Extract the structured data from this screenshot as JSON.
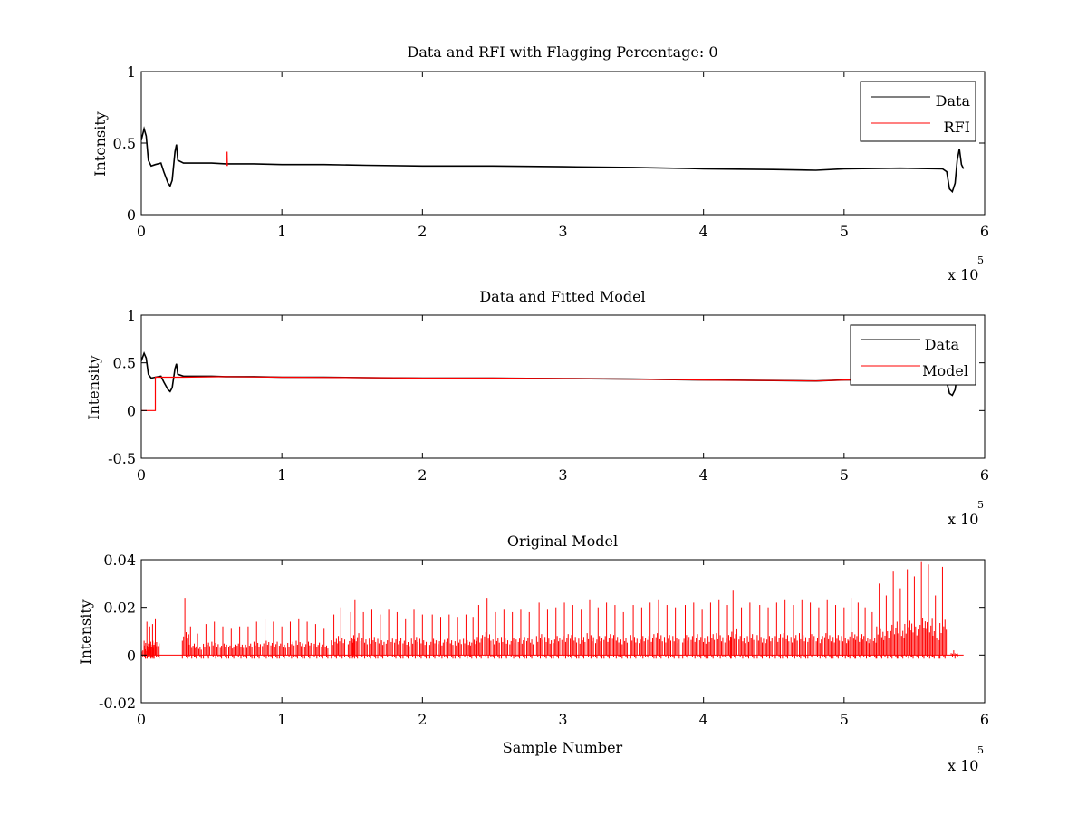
{
  "figure": {
    "background": "#ffffff",
    "axes_color": "#000000"
  },
  "chart_data": [
    {
      "type": "line",
      "title": "Data and RFI with Flagging Percentage: 0",
      "xlabel": "",
      "ylabel": "Intensity",
      "xlim": [
        0,
        600000
      ],
      "ylim": [
        0,
        1
      ],
      "xticks": [
        0,
        100000,
        200000,
        300000,
        400000,
        500000,
        600000
      ],
      "xtick_labels": [
        "0",
        "1",
        "2",
        "3",
        "4",
        "5",
        "6"
      ],
      "yticks": [
        0,
        0.5,
        1
      ],
      "ytick_labels": [
        "0",
        "0.5",
        "1"
      ],
      "x_multiplier": {
        "base": "x 10",
        "exponent": "5"
      },
      "legend": {
        "placement": "top-right",
        "entries": [
          "Data",
          "RFI"
        ]
      },
      "series": [
        {
          "name": "Data",
          "color": "#000000",
          "points": [
            [
              0,
              0.52
            ],
            [
              2000,
              0.6
            ],
            [
              3500,
              0.55
            ],
            [
              5000,
              0.38
            ],
            [
              7000,
              0.34
            ],
            [
              10000,
              0.35
            ],
            [
              14000,
              0.36
            ],
            [
              16000,
              0.3
            ],
            [
              19000,
              0.22
            ],
            [
              20500,
              0.2
            ],
            [
              22000,
              0.24
            ],
            [
              24000,
              0.44
            ],
            [
              25000,
              0.49
            ],
            [
              26000,
              0.38
            ],
            [
              30000,
              0.36
            ],
            [
              50000,
              0.36
            ],
            [
              60000,
              0.355
            ],
            [
              80000,
              0.355
            ],
            [
              100000,
              0.35
            ],
            [
              130000,
              0.35
            ],
            [
              160000,
              0.345
            ],
            [
              200000,
              0.34
            ],
            [
              250000,
              0.34
            ],
            [
              300000,
              0.335
            ],
            [
              350000,
              0.33
            ],
            [
              400000,
              0.32
            ],
            [
              450000,
              0.315
            ],
            [
              480000,
              0.31
            ],
            [
              500000,
              0.32
            ],
            [
              540000,
              0.325
            ],
            [
              570000,
              0.32
            ],
            [
              573000,
              0.3
            ],
            [
              575000,
              0.18
            ],
            [
              577000,
              0.16
            ],
            [
              579000,
              0.22
            ],
            [
              580500,
              0.38
            ],
            [
              582000,
              0.46
            ],
            [
              583500,
              0.35
            ],
            [
              585000,
              0.32
            ]
          ]
        },
        {
          "name": "RFI",
          "color": "#ff0000",
          "points": [
            [
              61000,
              0.34
            ],
            [
              61000,
              0.44
            ],
            [
              61200,
              0.34
            ]
          ]
        }
      ]
    },
    {
      "type": "line",
      "title": "Data and Fitted Model",
      "xlabel": "",
      "ylabel": "Intensity",
      "xlim": [
        0,
        600000
      ],
      "ylim": [
        -0.5,
        1
      ],
      "xticks": [
        0,
        100000,
        200000,
        300000,
        400000,
        500000,
        600000
      ],
      "xtick_labels": [
        "0",
        "1",
        "2",
        "3",
        "4",
        "5",
        "6"
      ],
      "yticks": [
        -0.5,
        0,
        0.5,
        1
      ],
      "ytick_labels": [
        "-0.5",
        "0",
        "0.5",
        "1"
      ],
      "x_multiplier": {
        "base": "x 10",
        "exponent": "5"
      },
      "legend": {
        "placement": "top-right",
        "entries": [
          "Data",
          "Model"
        ]
      },
      "series": [
        {
          "name": "Data",
          "color": "#000000",
          "points": [
            [
              0,
              0.52
            ],
            [
              2000,
              0.6
            ],
            [
              3500,
              0.55
            ],
            [
              5000,
              0.38
            ],
            [
              7000,
              0.34
            ],
            [
              10000,
              0.35
            ],
            [
              14000,
              0.36
            ],
            [
              16000,
              0.3
            ],
            [
              19000,
              0.22
            ],
            [
              20500,
              0.2
            ],
            [
              22000,
              0.24
            ],
            [
              24000,
              0.44
            ],
            [
              25000,
              0.49
            ],
            [
              26000,
              0.38
            ],
            [
              30000,
              0.36
            ],
            [
              50000,
              0.36
            ],
            [
              60000,
              0.355
            ],
            [
              80000,
              0.355
            ],
            [
              100000,
              0.35
            ],
            [
              130000,
              0.35
            ],
            [
              160000,
              0.345
            ],
            [
              200000,
              0.34
            ],
            [
              250000,
              0.34
            ],
            [
              300000,
              0.335
            ],
            [
              350000,
              0.33
            ],
            [
              400000,
              0.32
            ],
            [
              450000,
              0.315
            ],
            [
              480000,
              0.31
            ],
            [
              500000,
              0.32
            ],
            [
              540000,
              0.325
            ],
            [
              570000,
              0.32
            ],
            [
              573000,
              0.3
            ],
            [
              575000,
              0.18
            ],
            [
              577000,
              0.16
            ],
            [
              579000,
              0.22
            ],
            [
              580500,
              0.38
            ],
            [
              582000,
              0.46
            ],
            [
              583500,
              0.35
            ],
            [
              585000,
              0.32
            ]
          ]
        },
        {
          "name": "Model",
          "color": "#ff0000",
          "points": [
            [
              0,
              0
            ],
            [
              10000,
              0
            ],
            [
              10000,
              0.35
            ],
            [
              30000,
              0.35
            ],
            [
              60000,
              0.355
            ],
            [
              100000,
              0.35
            ],
            [
              160000,
              0.345
            ],
            [
              200000,
              0.34
            ],
            [
              250000,
              0.34
            ],
            [
              300000,
              0.335
            ],
            [
              350000,
              0.33
            ],
            [
              400000,
              0.32
            ],
            [
              450000,
              0.315
            ],
            [
              480000,
              0.31
            ],
            [
              500000,
              0.32
            ],
            [
              540000,
              0.325
            ],
            [
              570000,
              0.32
            ],
            [
              585000,
              0.32
            ]
          ]
        }
      ]
    },
    {
      "type": "line",
      "title": "Original Model",
      "xlabel": "Sample Number",
      "ylabel": "Intensity",
      "xlim": [
        0,
        600000
      ],
      "ylim": [
        -0.02,
        0.04
      ],
      "xticks": [
        0,
        100000,
        200000,
        300000,
        400000,
        500000,
        600000
      ],
      "xtick_labels": [
        "0",
        "1",
        "2",
        "3",
        "4",
        "5",
        "6"
      ],
      "yticks": [
        -0.02,
        0,
        0.02,
        0.04
      ],
      "ytick_labels": [
        "-0.02",
        "0",
        "0.02",
        "0.04"
      ],
      "x_multiplier": {
        "base": "x 10",
        "exponent": "5"
      },
      "series": [
        {
          "name": "",
          "color": "#ff0000",
          "x_end": 585000,
          "baseline": 0,
          "spikes": [
            [
              2000,
              0.006
            ],
            [
              4000,
              0.014
            ],
            [
              6000,
              0.012
            ],
            [
              8000,
              0.013
            ],
            [
              10000,
              0.015
            ],
            [
              31000,
              0.024
            ],
            [
              35000,
              0.012
            ],
            [
              40000,
              0.009
            ],
            [
              46000,
              0.013
            ],
            [
              52000,
              0.014
            ],
            [
              58000,
              0.012
            ],
            [
              64000,
              0.011
            ],
            [
              70000,
              0.012
            ],
            [
              76000,
              0.012
            ],
            [
              82000,
              0.014
            ],
            [
              88000,
              0.015
            ],
            [
              94000,
              0.014
            ],
            [
              100000,
              0.012
            ],
            [
              106000,
              0.014
            ],
            [
              112000,
              0.015
            ],
            [
              118000,
              0.014
            ],
            [
              124000,
              0.013
            ],
            [
              130000,
              0.011
            ],
            [
              137000,
              0.017
            ],
            [
              142000,
              0.02
            ],
            [
              149000,
              0.018
            ],
            [
              152000,
              0.023
            ],
            [
              158000,
              0.018
            ],
            [
              164000,
              0.019
            ],
            [
              170000,
              0.017
            ],
            [
              176000,
              0.019
            ],
            [
              182000,
              0.018
            ],
            [
              188000,
              0.015
            ],
            [
              194000,
              0.019
            ],
            [
              200000,
              0.017
            ],
            [
              207000,
              0.017
            ],
            [
              213000,
              0.016
            ],
            [
              219000,
              0.017
            ],
            [
              225000,
              0.016
            ],
            [
              231000,
              0.017
            ],
            [
              236000,
              0.016
            ],
            [
              240000,
              0.021
            ],
            [
              246000,
              0.024
            ],
            [
              252000,
              0.018
            ],
            [
              258000,
              0.019
            ],
            [
              264000,
              0.018
            ],
            [
              270000,
              0.019
            ],
            [
              276000,
              0.018
            ],
            [
              283000,
              0.022
            ],
            [
              289000,
              0.019
            ],
            [
              295000,
              0.02
            ],
            [
              301000,
              0.022
            ],
            [
              307000,
              0.021
            ],
            [
              313000,
              0.019
            ],
            [
              319000,
              0.023
            ],
            [
              325000,
              0.02
            ],
            [
              331000,
              0.022
            ],
            [
              337000,
              0.021
            ],
            [
              343000,
              0.018
            ],
            [
              350000,
              0.021
            ],
            [
              356000,
              0.02
            ],
            [
              362000,
              0.022
            ],
            [
              368000,
              0.023
            ],
            [
              374000,
              0.021
            ],
            [
              380000,
              0.02
            ],
            [
              387000,
              0.021
            ],
            [
              393000,
              0.022
            ],
            [
              399000,
              0.019
            ],
            [
              405000,
              0.022
            ],
            [
              411000,
              0.023
            ],
            [
              417000,
              0.021
            ],
            [
              421000,
              0.027
            ],
            [
              427000,
              0.02
            ],
            [
              433000,
              0.022
            ],
            [
              440000,
              0.021
            ],
            [
              446000,
              0.02
            ],
            [
              452000,
              0.022
            ],
            [
              458000,
              0.023
            ],
            [
              464000,
              0.021
            ],
            [
              470000,
              0.023
            ],
            [
              476000,
              0.022
            ],
            [
              482000,
              0.02
            ],
            [
              488000,
              0.023
            ],
            [
              494000,
              0.021
            ],
            [
              500000,
              0.02
            ],
            [
              505000,
              0.024
            ],
            [
              510000,
              0.022
            ],
            [
              515000,
              0.02
            ],
            [
              520000,
              0.018
            ],
            [
              525000,
              0.03
            ],
            [
              530000,
              0.025
            ],
            [
              535000,
              0.035
            ],
            [
              540000,
              0.028
            ],
            [
              545000,
              0.036
            ],
            [
              550000,
              0.033
            ],
            [
              555000,
              0.039
            ],
            [
              560000,
              0.038
            ],
            [
              565000,
              0.025
            ],
            [
              570000,
              0.037
            ],
            [
              578000,
              0.002
            ]
          ],
          "min_dip": -0.003
        }
      ]
    }
  ]
}
